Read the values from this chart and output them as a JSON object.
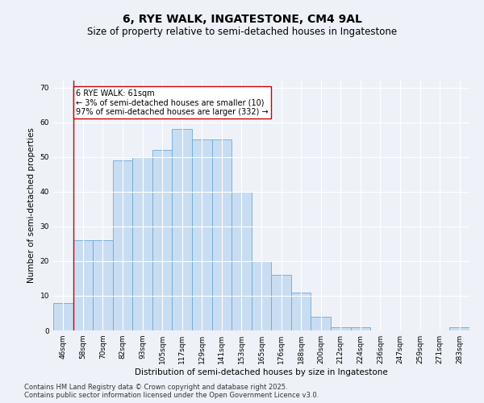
{
  "title": "6, RYE WALK, INGATESTONE, CM4 9AL",
  "subtitle": "Size of property relative to semi-detached houses in Ingatestone",
  "xlabel": "Distribution of semi-detached houses by size in Ingatestone",
  "ylabel": "Number of semi-detached properties",
  "categories": [
    "46sqm",
    "58sqm",
    "70sqm",
    "82sqm",
    "93sqm",
    "105sqm",
    "117sqm",
    "129sqm",
    "141sqm",
    "153sqm",
    "165sqm",
    "176sqm",
    "188sqm",
    "200sqm",
    "212sqm",
    "224sqm",
    "236sqm",
    "247sqm",
    "259sqm",
    "271sqm",
    "283sqm"
  ],
  "values": [
    8,
    26,
    26,
    49,
    50,
    52,
    58,
    55,
    55,
    40,
    20,
    16,
    11,
    4,
    1,
    1,
    0,
    0,
    0,
    0,
    1
  ],
  "bar_color": "#c9ddf2",
  "bar_edge_color": "#6aaad4",
  "vline_x_index": 1.5,
  "vline_color": "#cc0000",
  "annotation_text": "6 RYE WALK: 61sqm\n← 3% of semi-detached houses are smaller (10)\n97% of semi-detached houses are larger (332) →",
  "annotation_box_facecolor": "white",
  "annotation_box_edgecolor": "#cc0000",
  "ylim": [
    0,
    72
  ],
  "yticks": [
    0,
    10,
    20,
    30,
    40,
    50,
    60,
    70
  ],
  "footer_line1": "Contains HM Land Registry data © Crown copyright and database right 2025.",
  "footer_line2": "Contains public sector information licensed under the Open Government Licence v3.0.",
  "bg_color": "#eef2f8",
  "grid_color": "#ffffff",
  "title_fontsize": 10,
  "subtitle_fontsize": 8.5,
  "axis_label_fontsize": 7.5,
  "tick_fontsize": 6.5,
  "footer_fontsize": 6,
  "annotation_fontsize": 7
}
